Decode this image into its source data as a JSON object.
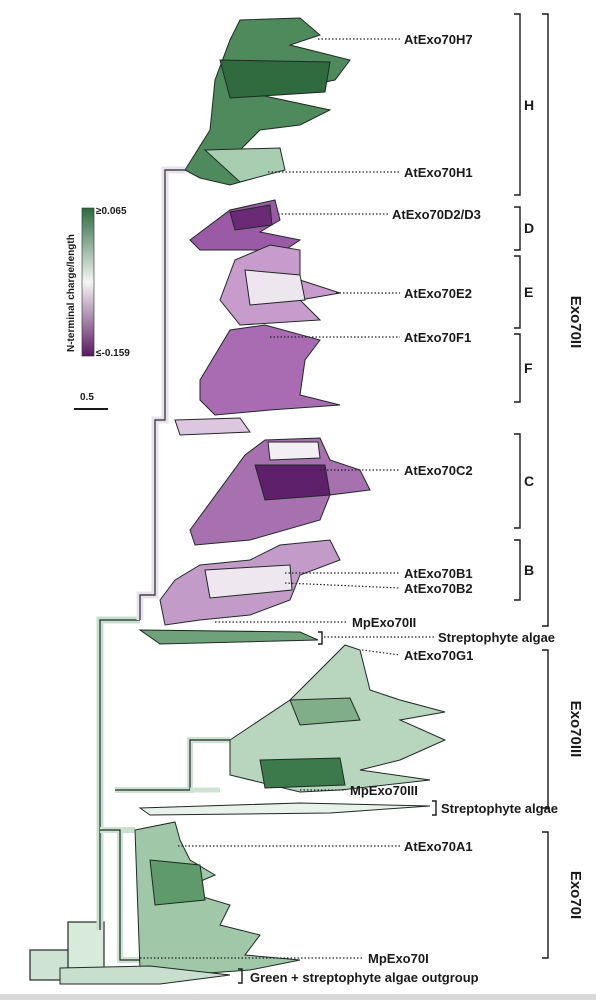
{
  "colors": {
    "positive": "#2e6b3f",
    "neutral": "#f5f5f5",
    "negative": "#5c1a62",
    "stroke": "#1f2a24"
  },
  "legend": {
    "title": "N-terminal charge/length",
    "max_label": "≥0.065",
    "min_label": "≤-0.159",
    "scale_label": "0.5"
  },
  "gene_labels": [
    "AtExo70H7",
    "AtExo70H1",
    "AtExo70D2/D3",
    "AtExo70E2",
    "AtExo70F1",
    "AtExo70C2",
    "AtExo70B1",
    "AtExo70B2",
    "MpExo70II",
    "AtExo70G1",
    "MpExo70III",
    "AtExo70A1",
    "MpExo70I"
  ],
  "subgroups": [
    "H",
    "D",
    "E",
    "F",
    "C",
    "B"
  ],
  "outgroup_labels": [
    "Streptophyte algae",
    "Streptophyte algae",
    "Green + streptophyte algae outgroup"
  ],
  "classes": [
    "Exo70II",
    "Exo70III",
    "Exo70I"
  ]
}
